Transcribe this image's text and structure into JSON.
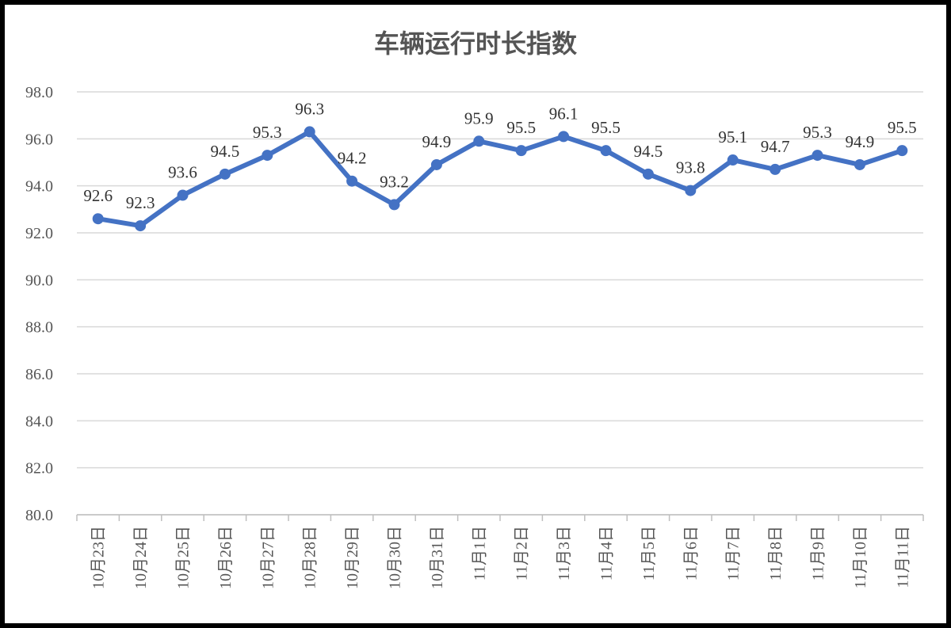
{
  "chart_data": {
    "type": "line",
    "title": "车辆运行时长指数",
    "xlabel": "",
    "ylabel": "",
    "ylim": [
      80,
      98
    ],
    "yticks": [
      "80.0",
      "82.0",
      "84.0",
      "86.0",
      "88.0",
      "90.0",
      "92.0",
      "94.0",
      "96.0",
      "98.0"
    ],
    "grid": true,
    "categories": [
      "10月23日",
      "10月24日",
      "10月25日",
      "10月26日",
      "10月27日",
      "10月28日",
      "10月29日",
      "10月30日",
      "10月31日",
      "11月1日",
      "11月2日",
      "11月3日",
      "11月4日",
      "11月5日",
      "11月6日",
      "11月7日",
      "11月8日",
      "11月9日",
      "11月10日",
      "11月11日"
    ],
    "series": [
      {
        "values": [
          92.6,
          92.3,
          93.6,
          94.5,
          95.3,
          96.3,
          94.2,
          93.2,
          94.9,
          95.9,
          95.5,
          96.1,
          95.5,
          94.5,
          93.8,
          95.1,
          94.7,
          95.3,
          94.9,
          95.5
        ],
        "color": "#4472c4"
      }
    ]
  }
}
